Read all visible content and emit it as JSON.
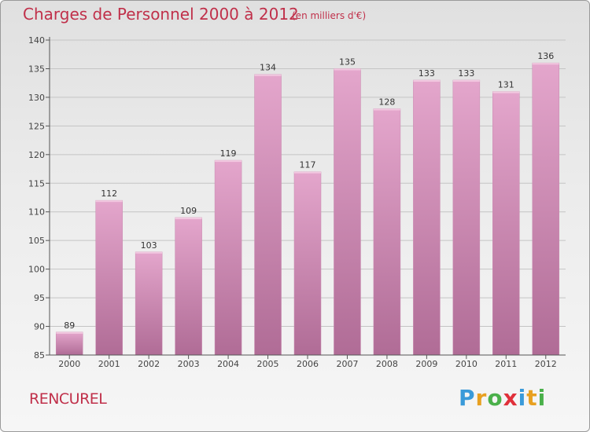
{
  "header": {
    "title": "Charges de Personnel 2000 à 2012",
    "unit": "(en milliers d'€)"
  },
  "footer": {
    "place": "RENCUREL",
    "logo_letters": [
      "P",
      "r",
      "o",
      "x",
      "i",
      "t",
      "i"
    ],
    "logo_colors": [
      "#3a9ad9",
      "#e8a020",
      "#4ab04a",
      "#e0303a",
      "#3a9ad9",
      "#e8a020",
      "#4ab04a"
    ]
  },
  "colors": {
    "bar_light": "#e4a6cc",
    "bar_dark": "#b06c96",
    "text": "#c0304a",
    "axis": "#555555"
  },
  "chart_data": {
    "type": "bar",
    "categories": [
      "2000",
      "2001",
      "2002",
      "2003",
      "2004",
      "2005",
      "2006",
      "2007",
      "2008",
      "2009",
      "2010",
      "2011",
      "2012"
    ],
    "values": [
      89,
      112,
      103,
      109,
      119,
      134,
      117,
      135,
      128,
      133,
      133,
      131,
      136
    ],
    "ylim": [
      85,
      140
    ],
    "yticks": [
      85,
      90,
      95,
      100,
      105,
      110,
      115,
      120,
      125,
      130,
      135,
      140
    ],
    "grid": true,
    "legend": "none"
  }
}
